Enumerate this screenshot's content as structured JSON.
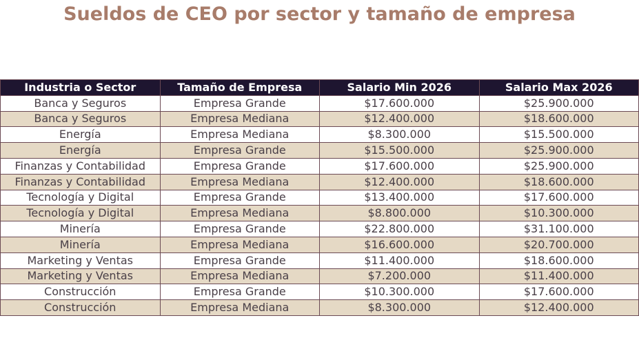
{
  "chart_data": {
    "type": "table",
    "title": "Sueldos de CEO por sector y tamaño de empresa",
    "columns": [
      "Industria o Sector",
      "Tamaño de Empresa",
      "Salario Min 2026",
      "Salario Max 2026"
    ],
    "rows": [
      [
        "Banca y Seguros",
        "Empresa Grande",
        "$17.600.000",
        "$25.900.000"
      ],
      [
        "Banca y Seguros",
        "Empresa Mediana",
        "$12.400.000",
        "$18.600.000"
      ],
      [
        "Energía",
        "Empresa Mediana",
        "$8.300.000",
        "$15.500.000"
      ],
      [
        "Energía",
        "Empresa Grande",
        "$15.500.000",
        "$25.900.000"
      ],
      [
        "Finanzas y Contabilidad",
        "Empresa Grande",
        "$17.600.000",
        "$25.900.000"
      ],
      [
        "Finanzas y Contabilidad",
        "Empresa Mediana",
        "$12.400.000",
        "$18.600.000"
      ],
      [
        "Tecnología y Digital",
        "Empresa Grande",
        "$13.400.000",
        "$17.600.000"
      ],
      [
        "Tecnología y Digital",
        "Empresa Mediana",
        "$8.800.000",
        "$10.300.000"
      ],
      [
        "Minería",
        "Empresa Grande",
        "$22.800.000",
        "$31.100.000"
      ],
      [
        "Minería",
        "Empresa Mediana",
        "$16.600.000",
        "$20.700.000"
      ],
      [
        "Marketing y Ventas",
        "Empresa Grande",
        "$11.400.000",
        "$18.600.000"
      ],
      [
        "Marketing y Ventas",
        "Empresa Mediana",
        "$7.200.000",
        "$11.400.000"
      ],
      [
        "Construcción",
        "Empresa Grande",
        "$10.300.000",
        "$17.600.000"
      ],
      [
        "Construcción",
        "Empresa Mediana",
        "$8.300.000",
        "$12.400.000"
      ]
    ],
    "colors": {
      "title": "#a87c6a",
      "header_bg": "#1e1530",
      "header_text": "#ffffff",
      "row_alt_bg": "#e5d9c5",
      "row_bg": "#ffffff",
      "border": "#6b4a54"
    }
  }
}
